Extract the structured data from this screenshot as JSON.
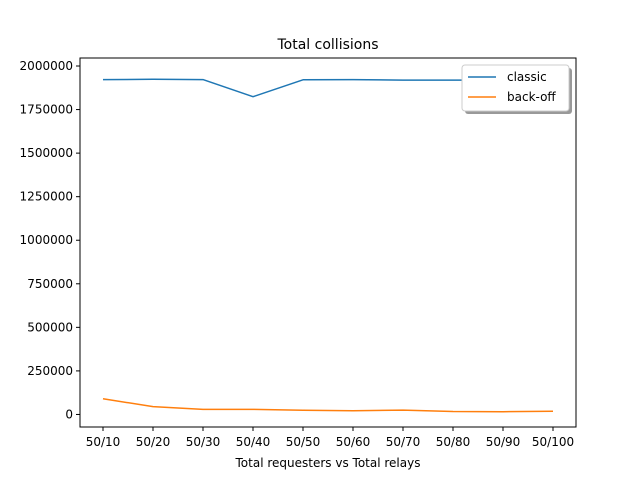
{
  "chart_data": {
    "type": "line",
    "title": "Total collisions",
    "xlabel": "Total requesters vs Total relays",
    "ylabel": "",
    "categories": [
      "50/10",
      "50/20",
      "50/30",
      "50/40",
      "50/50",
      "50/60",
      "50/70",
      "50/80",
      "50/90",
      "50/100"
    ],
    "yticks": [
      0,
      250000,
      500000,
      750000,
      1000000,
      1250000,
      1500000,
      1750000,
      2000000
    ],
    "ytick_labels": [
      "0",
      "250000",
      "500000",
      "750000",
      "1000000",
      "1250000",
      "1500000",
      "1750000",
      "2000000"
    ],
    "ylim": [
      -72000,
      2046000
    ],
    "grid": false,
    "legend_position": "top-right",
    "series": [
      {
        "name": "classic",
        "color": "#1f77b4",
        "values": [
          1922000,
          1924000,
          1922000,
          1824000,
          1921000,
          1922000,
          1919000,
          1919000,
          1919000,
          1919000
        ]
      },
      {
        "name": "back-off",
        "color": "#ff7f0e",
        "values": [
          90000,
          45000,
          29000,
          29000,
          24000,
          21000,
          25000,
          17000,
          16000,
          18000
        ]
      }
    ]
  }
}
